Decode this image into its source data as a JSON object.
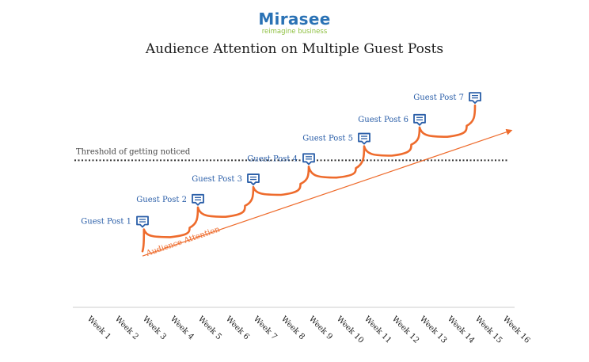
{
  "brand": {
    "name": "Mirasee",
    "tagline": "reimagine business",
    "name_color": "#2a72b5",
    "tagline_color": "#8dbf3f"
  },
  "chart_data": {
    "type": "line",
    "title": "Audience Attention on Multiple Guest Posts",
    "xlabel": "",
    "ylabel": "",
    "categories": [
      "Week 1",
      "Week 2",
      "Week 3",
      "Week 4",
      "Week 5",
      "Week 6",
      "Week 7",
      "Week 8",
      "Week 9",
      "Week 10",
      "Week 11",
      "Week 12",
      "Week 13",
      "Week 14",
      "Week 15",
      "Week 16"
    ],
    "y_axis_visible": false,
    "ylim": [
      0,
      100
    ],
    "grid": false,
    "legend": "none",
    "threshold": {
      "label": "Threshold of getting noticed",
      "value": 70,
      "style": "dotted",
      "color": "#333333"
    },
    "attention_series": {
      "color": "#ee6b2c",
      "points": [
        {
          "x": 3.0,
          "y": 12
        },
        {
          "x": 3.05,
          "y": 26
        },
        {
          "x": 4.0,
          "y": 21
        },
        {
          "x": 4.7,
          "y": 27
        },
        {
          "x": 5.0,
          "y": 40
        },
        {
          "x": 6.0,
          "y": 34
        },
        {
          "x": 6.7,
          "y": 41
        },
        {
          "x": 7.0,
          "y": 53
        },
        {
          "x": 8.0,
          "y": 48
        },
        {
          "x": 8.7,
          "y": 55
        },
        {
          "x": 9.0,
          "y": 66
        },
        {
          "x": 10.0,
          "y": 59
        },
        {
          "x": 10.7,
          "y": 65
        },
        {
          "x": 11.0,
          "y": 79
        },
        {
          "x": 12.0,
          "y": 73
        },
        {
          "x": 12.7,
          "y": 80
        },
        {
          "x": 13.0,
          "y": 91
        },
        {
          "x": 14.0,
          "y": 85
        },
        {
          "x": 14.7,
          "y": 92
        },
        {
          "x": 15.0,
          "y": 105
        }
      ]
    },
    "trend": {
      "label": "Audience Attention",
      "color": "#ee6b2c",
      "start": {
        "x": 3.0,
        "y": 9
      },
      "end": {
        "x": 16.3,
        "y": 89
      }
    },
    "guest_posts": [
      {
        "label": "Guest Post 1",
        "x": 3.0,
        "y": 26
      },
      {
        "label": "Guest Post 2",
        "x": 5.0,
        "y": 40
      },
      {
        "label": "Guest Post 3",
        "x": 7.0,
        "y": 53
      },
      {
        "label": "Guest Post 4",
        "x": 9.0,
        "y": 66
      },
      {
        "label": "Guest Post 5",
        "x": 11.0,
        "y": 79
      },
      {
        "label": "Guest Post 6",
        "x": 13.0,
        "y": 91
      },
      {
        "label": "Guest Post 7",
        "x": 15.0,
        "y": 105
      }
    ],
    "marker_color": "#2a5ea8",
    "label_color": "#2a5ea8",
    "axis_color": "#cccccc",
    "tick_label_color": "#1d1d1d"
  }
}
